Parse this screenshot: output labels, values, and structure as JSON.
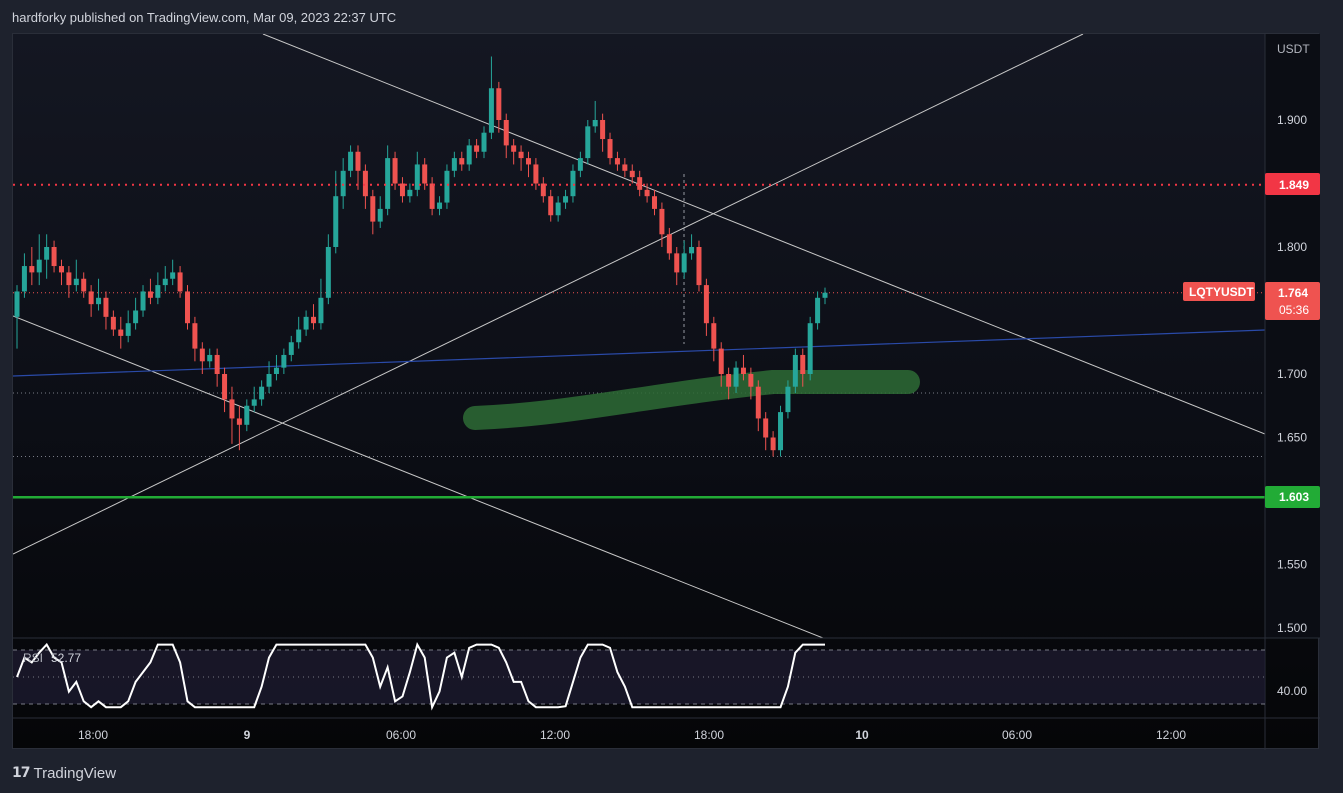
{
  "header": {
    "published": "hardforky published on TradingView.com, Mar 09, 2023 22:37 UTC"
  },
  "symbol": "LQTYUSDT",
  "currency": "USDT",
  "price": {
    "last": "1.764",
    "countdown": "05:36"
  },
  "levels": {
    "resistance": {
      "label": "1.849",
      "value": 1.849,
      "color": "#f23645"
    },
    "support": {
      "label": "1.603",
      "value": 1.603,
      "color": "#22ab36"
    }
  },
  "price_axis": {
    "ticks": [
      "1.900",
      "1.800",
      "1.700",
      "1.650",
      "1.550",
      "1.500"
    ]
  },
  "time_axis": {
    "ticks": [
      "18:00",
      "9",
      "06:00",
      "12:00",
      "18:00",
      "10",
      "06:00",
      "12:00"
    ]
  },
  "rsi": {
    "label": "RSI",
    "value": "52.77",
    "axis_tick": "40.00"
  },
  "colors": {
    "up": "#26a69a",
    "down": "#ef5350",
    "trendline": "#c8c8c8",
    "blue_line": "#2a4aa8",
    "zone": "#2e6b35"
  },
  "footer": {
    "brand": "TradingView",
    "logo": "tradingview-logo-icon"
  },
  "chart_data": {
    "type": "candlestick",
    "ylim": [
      1.5,
      1.95
    ],
    "rsi_ylim": [
      0,
      100
    ],
    "candles": [
      [
        1.745,
        1.765,
        1.72,
        1.77
      ],
      [
        1.765,
        1.785,
        1.76,
        1.795
      ],
      [
        1.785,
        1.78,
        1.77,
        1.8
      ],
      [
        1.78,
        1.79,
        1.77,
        1.81
      ],
      [
        1.79,
        1.8,
        1.775,
        1.81
      ],
      [
        1.8,
        1.785,
        1.78,
        1.805
      ],
      [
        1.785,
        1.78,
        1.77,
        1.79
      ],
      [
        1.78,
        1.77,
        1.76,
        1.785
      ],
      [
        1.77,
        1.775,
        1.765,
        1.79
      ],
      [
        1.775,
        1.765,
        1.76,
        1.78
      ],
      [
        1.765,
        1.755,
        1.745,
        1.77
      ],
      [
        1.755,
        1.76,
        1.75,
        1.775
      ],
      [
        1.76,
        1.745,
        1.735,
        1.765
      ],
      [
        1.745,
        1.735,
        1.73,
        1.75
      ],
      [
        1.735,
        1.73,
        1.72,
        1.745
      ],
      [
        1.73,
        1.74,
        1.725,
        1.75
      ],
      [
        1.74,
        1.75,
        1.735,
        1.76
      ],
      [
        1.75,
        1.765,
        1.745,
        1.77
      ],
      [
        1.765,
        1.76,
        1.755,
        1.775
      ],
      [
        1.76,
        1.77,
        1.755,
        1.78
      ],
      [
        1.77,
        1.775,
        1.765,
        1.785
      ],
      [
        1.775,
        1.78,
        1.77,
        1.79
      ],
      [
        1.78,
        1.765,
        1.76,
        1.785
      ],
      [
        1.765,
        1.74,
        1.735,
        1.77
      ],
      [
        1.74,
        1.72,
        1.71,
        1.745
      ],
      [
        1.72,
        1.71,
        1.7,
        1.725
      ],
      [
        1.71,
        1.715,
        1.705,
        1.72
      ],
      [
        1.715,
        1.7,
        1.69,
        1.72
      ],
      [
        1.7,
        1.68,
        1.67,
        1.705
      ],
      [
        1.68,
        1.665,
        1.645,
        1.69
      ],
      [
        1.665,
        1.66,
        1.64,
        1.675
      ],
      [
        1.66,
        1.675,
        1.655,
        1.68
      ],
      [
        1.675,
        1.68,
        1.67,
        1.69
      ],
      [
        1.68,
        1.69,
        1.675,
        1.695
      ],
      [
        1.69,
        1.7,
        1.685,
        1.71
      ],
      [
        1.7,
        1.705,
        1.695,
        1.715
      ],
      [
        1.705,
        1.715,
        1.7,
        1.72
      ],
      [
        1.715,
        1.725,
        1.71,
        1.73
      ],
      [
        1.725,
        1.735,
        1.72,
        1.745
      ],
      [
        1.735,
        1.745,
        1.73,
        1.75
      ],
      [
        1.745,
        1.74,
        1.735,
        1.755
      ],
      [
        1.74,
        1.76,
        1.735,
        1.775
      ],
      [
        1.76,
        1.8,
        1.755,
        1.81
      ],
      [
        1.8,
        1.84,
        1.795,
        1.86
      ],
      [
        1.84,
        1.86,
        1.83,
        1.87
      ],
      [
        1.86,
        1.875,
        1.855,
        1.88
      ],
      [
        1.875,
        1.86,
        1.845,
        1.88
      ],
      [
        1.86,
        1.84,
        1.83,
        1.865
      ],
      [
        1.84,
        1.82,
        1.81,
        1.845
      ],
      [
        1.82,
        1.83,
        1.815,
        1.84
      ],
      [
        1.83,
        1.87,
        1.825,
        1.88
      ],
      [
        1.87,
        1.85,
        1.845,
        1.875
      ],
      [
        1.85,
        1.84,
        1.835,
        1.855
      ],
      [
        1.84,
        1.845,
        1.835,
        1.85
      ],
      [
        1.845,
        1.865,
        1.84,
        1.875
      ],
      [
        1.865,
        1.85,
        1.845,
        1.87
      ],
      [
        1.85,
        1.83,
        1.825,
        1.855
      ],
      [
        1.83,
        1.835,
        1.825,
        1.84
      ],
      [
        1.835,
        1.86,
        1.83,
        1.865
      ],
      [
        1.86,
        1.87,
        1.855,
        1.875
      ],
      [
        1.87,
        1.865,
        1.86,
        1.875
      ],
      [
        1.865,
        1.88,
        1.86,
        1.885
      ],
      [
        1.88,
        1.875,
        1.87,
        1.885
      ],
      [
        1.875,
        1.89,
        1.87,
        1.895
      ],
      [
        1.89,
        1.925,
        1.885,
        1.95
      ],
      [
        1.925,
        1.9,
        1.89,
        1.93
      ],
      [
        1.9,
        1.88,
        1.87,
        1.905
      ],
      [
        1.88,
        1.875,
        1.865,
        1.885
      ],
      [
        1.875,
        1.87,
        1.86,
        1.88
      ],
      [
        1.87,
        1.865,
        1.855,
        1.875
      ],
      [
        1.865,
        1.85,
        1.845,
        1.87
      ],
      [
        1.85,
        1.84,
        1.835,
        1.855
      ],
      [
        1.84,
        1.825,
        1.82,
        1.845
      ],
      [
        1.825,
        1.835,
        1.82,
        1.84
      ],
      [
        1.835,
        1.84,
        1.83,
        1.845
      ],
      [
        1.84,
        1.86,
        1.835,
        1.865
      ],
      [
        1.86,
        1.87,
        1.855,
        1.875
      ],
      [
        1.87,
        1.895,
        1.865,
        1.9
      ],
      [
        1.895,
        1.9,
        1.89,
        1.915
      ],
      [
        1.9,
        1.885,
        1.875,
        1.905
      ],
      [
        1.885,
        1.87,
        1.865,
        1.89
      ],
      [
        1.87,
        1.865,
        1.86,
        1.875
      ],
      [
        1.865,
        1.86,
        1.855,
        1.87
      ],
      [
        1.86,
        1.855,
        1.85,
        1.865
      ],
      [
        1.855,
        1.845,
        1.84,
        1.86
      ],
      [
        1.845,
        1.84,
        1.835,
        1.85
      ],
      [
        1.84,
        1.83,
        1.825,
        1.845
      ],
      [
        1.83,
        1.81,
        1.8,
        1.835
      ],
      [
        1.81,
        1.795,
        1.79,
        1.815
      ],
      [
        1.795,
        1.78,
        1.77,
        1.8
      ],
      [
        1.78,
        1.795,
        1.775,
        1.805
      ],
      [
        1.795,
        1.8,
        1.79,
        1.81
      ],
      [
        1.8,
        1.77,
        1.765,
        1.805
      ],
      [
        1.77,
        1.74,
        1.73,
        1.775
      ],
      [
        1.74,
        1.72,
        1.71,
        1.745
      ],
      [
        1.72,
        1.7,
        1.69,
        1.725
      ],
      [
        1.7,
        1.69,
        1.68,
        1.705
      ],
      [
        1.69,
        1.705,
        1.685,
        1.71
      ],
      [
        1.705,
        1.7,
        1.695,
        1.715
      ],
      [
        1.7,
        1.69,
        1.68,
        1.705
      ],
      [
        1.69,
        1.665,
        1.655,
        1.695
      ],
      [
        1.665,
        1.65,
        1.64,
        1.67
      ],
      [
        1.65,
        1.64,
        1.635,
        1.655
      ],
      [
        1.64,
        1.67,
        1.635,
        1.675
      ],
      [
        1.67,
        1.69,
        1.665,
        1.695
      ],
      [
        1.69,
        1.715,
        1.685,
        1.72
      ],
      [
        1.715,
        1.7,
        1.69,
        1.72
      ],
      [
        1.7,
        1.74,
        1.695,
        1.745
      ],
      [
        1.74,
        1.76,
        1.735,
        1.765
      ],
      [
        1.76,
        1.764,
        1.755,
        1.768
      ]
    ]
  }
}
